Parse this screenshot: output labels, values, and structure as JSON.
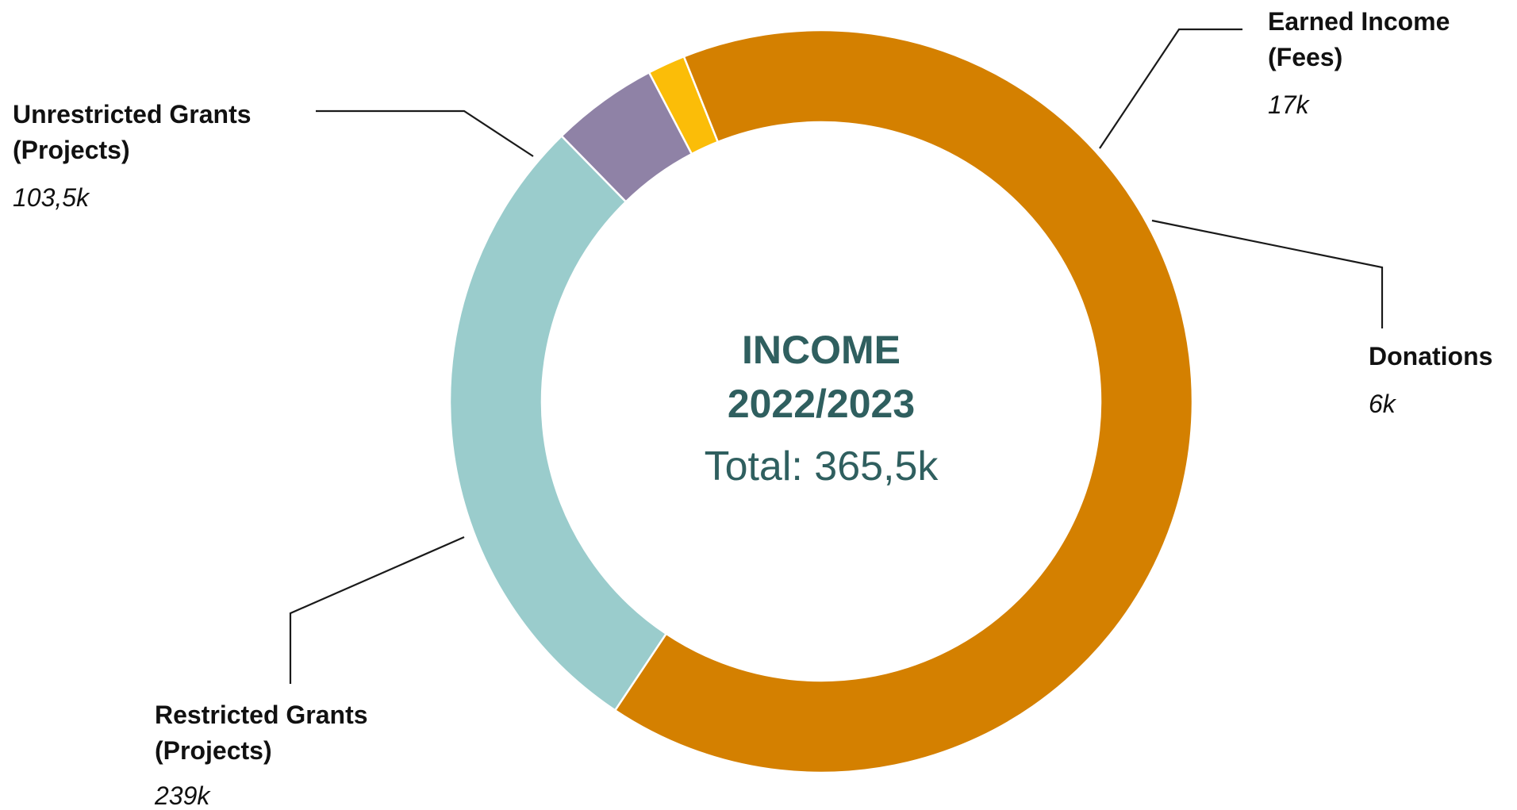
{
  "chart_data": {
    "type": "pie",
    "center": {
      "title_line1": "INCOME",
      "title_line2": "2022/2023",
      "total_label": "Total: 365,5k"
    },
    "slices": [
      {
        "name_line1": "Unrestricted Grants",
        "name_line2": "(Projects)",
        "value": 103.5,
        "value_label": "103,5k",
        "color": "#9acccc"
      },
      {
        "name_line1": "Earned Income",
        "name_line2": "(Fees)",
        "value": 17,
        "value_label": "17k",
        "color": "#8f82a6"
      },
      {
        "name_line1": "Donations",
        "name_line2": "",
        "value": 6,
        "value_label": "6k",
        "color": "#fbbd08"
      },
      {
        "name_line1": "Restricted Grants",
        "name_line2": "(Projects)",
        "value": 239,
        "value_label": "239k",
        "color": "#d48000"
      }
    ]
  }
}
